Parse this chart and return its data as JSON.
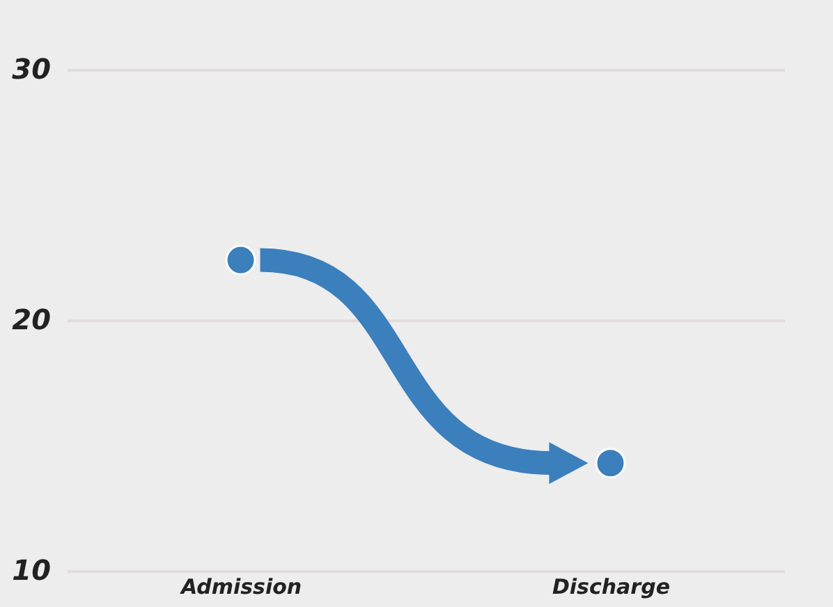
{
  "chart_data": {
    "type": "scatter",
    "categories": [
      "Admission",
      "Discharge"
    ],
    "series": [
      {
        "color": "#3b7fbd",
        "values": [
          22.4,
          14.3
        ]
      }
    ],
    "ylim": [
      10,
      30
    ],
    "yticks": [
      10,
      20,
      30
    ],
    "grid": "y",
    "marker": "circle"
  }
}
